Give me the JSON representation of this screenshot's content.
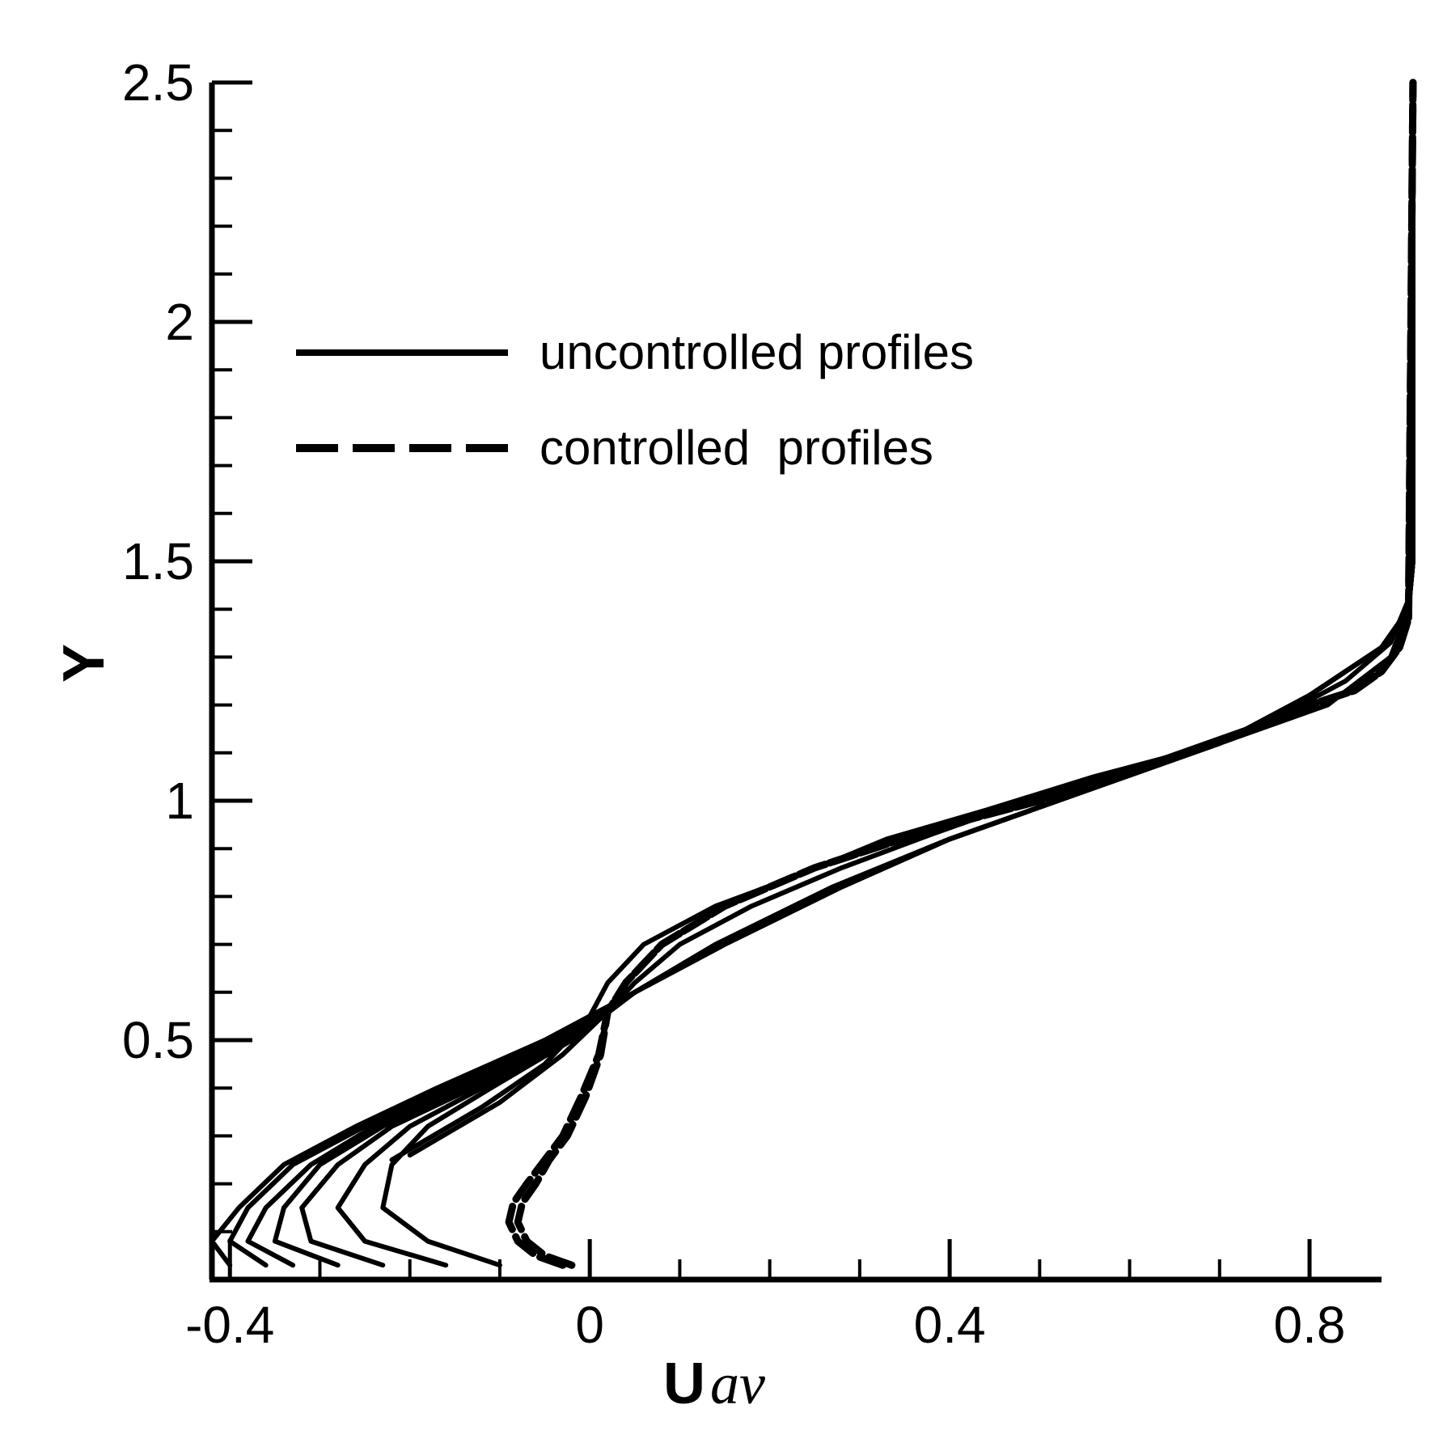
{
  "chart_data": {
    "type": "line",
    "title": "",
    "xlabel": "U",
    "xlabel_subscript": "av",
    "ylabel": "Y",
    "xlim": [
      -0.42,
      0.88
    ],
    "ylim": [
      0,
      2.5
    ],
    "x_ticks": [
      -0.4,
      0,
      0.4,
      0.8
    ],
    "x_tick_labels": [
      "-0.4",
      "0",
      "0.4",
      "0.8"
    ],
    "y_ticks": [
      0.5,
      1,
      1.5,
      2,
      2.5
    ],
    "y_tick_labels": [
      "0.5",
      "1",
      "1.5",
      "2",
      "2.5"
    ],
    "grid": false,
    "legend_position": "upper-left",
    "legend": [
      {
        "label": "uncontrolled profiles",
        "style": "solid"
      },
      {
        "label": "controlled  profiles",
        "style": "dashed"
      }
    ],
    "series": [
      {
        "style": "solid",
        "x": [
          -0.4,
          -0.42,
          -0.39,
          -0.34,
          -0.26,
          -0.17,
          -0.05,
          0.05,
          0.15,
          0.28,
          0.4,
          0.55,
          0.7,
          0.8,
          0.88,
          0.91,
          0.915,
          0.915
        ],
        "y": [
          0.03,
          0.08,
          0.15,
          0.24,
          0.32,
          0.4,
          0.5,
          0.6,
          0.7,
          0.82,
          0.92,
          1.02,
          1.12,
          1.22,
          1.32,
          1.4,
          1.5,
          2.5
        ]
      },
      {
        "style": "solid",
        "x": [
          -0.36,
          -0.4,
          -0.38,
          -0.33,
          -0.25,
          -0.16,
          -0.05,
          0.05,
          0.15,
          0.28,
          0.4,
          0.55,
          0.7,
          0.8,
          0.88,
          0.91,
          0.915,
          0.915
        ],
        "y": [
          0.03,
          0.08,
          0.15,
          0.24,
          0.32,
          0.4,
          0.5,
          0.6,
          0.7,
          0.82,
          0.92,
          1.02,
          1.12,
          1.22,
          1.32,
          1.4,
          1.5,
          2.5
        ]
      },
      {
        "style": "solid",
        "x": [
          -0.33,
          -0.38,
          -0.36,
          -0.31,
          -0.24,
          -0.15,
          -0.04,
          0.05,
          0.14,
          0.27,
          0.4,
          0.55,
          0.7,
          0.8,
          0.88,
          0.91,
          0.915,
          0.915
        ],
        "y": [
          0.03,
          0.08,
          0.15,
          0.24,
          0.32,
          0.4,
          0.5,
          0.6,
          0.7,
          0.82,
          0.92,
          1.02,
          1.12,
          1.22,
          1.32,
          1.4,
          1.5,
          2.5
        ]
      },
      {
        "style": "solid",
        "x": [
          -0.28,
          -0.35,
          -0.34,
          -0.3,
          -0.23,
          -0.14,
          -0.04,
          0.05,
          0.14,
          0.27,
          0.4,
          0.55,
          0.7,
          0.8,
          0.88,
          0.91,
          0.915,
          0.915
        ],
        "y": [
          0.03,
          0.08,
          0.15,
          0.24,
          0.32,
          0.4,
          0.5,
          0.6,
          0.7,
          0.82,
          0.92,
          1.02,
          1.12,
          1.22,
          1.32,
          1.4,
          1.5,
          2.5
        ]
      },
      {
        "style": "solid",
        "x": [
          -0.23,
          -0.31,
          -0.32,
          -0.28,
          -0.22,
          -0.13,
          -0.03,
          0.05,
          0.14,
          0.27,
          0.4,
          0.55,
          0.7,
          0.8,
          0.88,
          0.91,
          0.915,
          0.915
        ],
        "y": [
          0.03,
          0.08,
          0.15,
          0.24,
          0.32,
          0.4,
          0.5,
          0.6,
          0.7,
          0.82,
          0.92,
          1.02,
          1.12,
          1.22,
          1.32,
          1.4,
          1.5,
          2.5
        ]
      },
      {
        "style": "solid",
        "x": [
          -0.16,
          -0.25,
          -0.28,
          -0.25,
          -0.2,
          -0.12,
          -0.03,
          0.05,
          0.14,
          0.27,
          0.4,
          0.55,
          0.7,
          0.8,
          0.88,
          0.91,
          0.915,
          0.915
        ],
        "y": [
          0.03,
          0.08,
          0.15,
          0.24,
          0.32,
          0.4,
          0.5,
          0.6,
          0.7,
          0.82,
          0.92,
          1.02,
          1.12,
          1.22,
          1.32,
          1.4,
          1.5,
          2.5
        ]
      },
      {
        "style": "solid",
        "x": [
          -0.1,
          -0.18,
          -0.23,
          -0.22,
          -0.18,
          -0.11,
          -0.02,
          0.05,
          0.14,
          0.27,
          0.4,
          0.55,
          0.7,
          0.8,
          0.88,
          0.91,
          0.915,
          0.915
        ],
        "y": [
          0.03,
          0.08,
          0.15,
          0.24,
          0.32,
          0.4,
          0.5,
          0.6,
          0.7,
          0.82,
          0.92,
          1.02,
          1.12,
          1.22,
          1.32,
          1.4,
          1.5,
          2.5
        ]
      },
      {
        "style": "solid",
        "x": [
          -0.22,
          -0.12,
          -0.05,
          0.0,
          0.02,
          0.06,
          0.14,
          0.24,
          0.33,
          0.44,
          0.56,
          0.7,
          0.82,
          0.89,
          0.91,
          0.915
        ],
        "y": [
          0.25,
          0.36,
          0.45,
          0.55,
          0.62,
          0.7,
          0.78,
          0.85,
          0.92,
          0.98,
          1.05,
          1.12,
          1.2,
          1.3,
          1.4,
          2.5
        ]
      },
      {
        "style": "solid",
        "x": [
          -0.2,
          -0.1,
          -0.03,
          0.02,
          0.05,
          0.1,
          0.18,
          0.28,
          0.38,
          0.5,
          0.64,
          0.76,
          0.84,
          0.89,
          0.91
        ],
        "y": [
          0.26,
          0.37,
          0.47,
          0.56,
          0.62,
          0.7,
          0.78,
          0.86,
          0.93,
          1.01,
          1.09,
          1.17,
          1.25,
          1.33,
          1.42
        ]
      },
      {
        "style": "dashed",
        "x": [
          -0.03,
          -0.06,
          -0.08,
          -0.09,
          -0.085,
          -0.07,
          -0.05,
          -0.03,
          -0.01,
          0.01,
          0.02,
          0.04,
          0.08,
          0.15,
          0.25,
          0.38,
          0.5,
          0.6,
          0.68,
          0.74,
          0.8,
          0.85,
          0.88,
          0.9,
          0.91,
          0.915
        ],
        "y": [
          0.03,
          0.05,
          0.08,
          0.12,
          0.16,
          0.2,
          0.25,
          0.3,
          0.38,
          0.47,
          0.56,
          0.62,
          0.7,
          0.78,
          0.86,
          0.94,
          1.0,
          1.06,
          1.11,
          1.15,
          1.2,
          1.23,
          1.27,
          1.32,
          1.38,
          2.5
        ]
      },
      {
        "style": "dashed",
        "x": [
          -0.02,
          -0.05,
          -0.07,
          -0.08,
          -0.075,
          -0.06,
          -0.045,
          -0.025,
          -0.005,
          0.012,
          0.02,
          0.04,
          0.08,
          0.15,
          0.25,
          0.38,
          0.5,
          0.6,
          0.68,
          0.74,
          0.8,
          0.85,
          0.88,
          0.9,
          0.91,
          0.915
        ],
        "y": [
          0.03,
          0.05,
          0.08,
          0.12,
          0.16,
          0.2,
          0.25,
          0.3,
          0.38,
          0.47,
          0.56,
          0.62,
          0.7,
          0.78,
          0.86,
          0.94,
          1.0,
          1.06,
          1.11,
          1.15,
          1.2,
          1.23,
          1.27,
          1.32,
          1.38,
          2.5
        ]
      }
    ]
  }
}
